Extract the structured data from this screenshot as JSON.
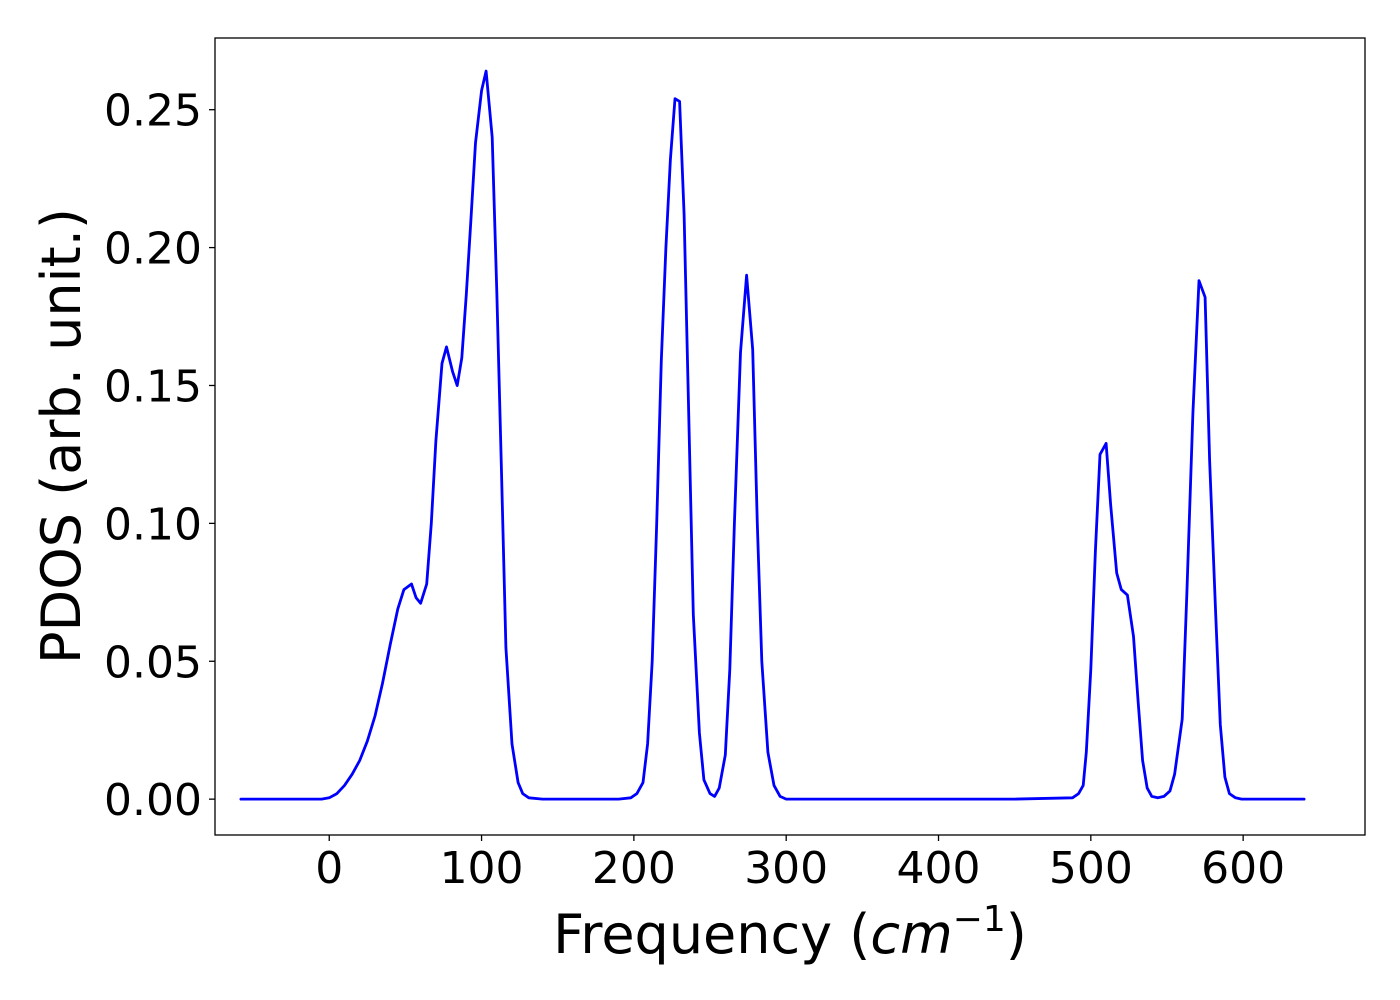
{
  "chart_data": {
    "type": "line",
    "xlabel": "Frequency (",
    "xlabel_math": "cm",
    "xlabel_sup": "−1",
    "xlabel_close": ")",
    "ylabel": "PDOS (arb. unit.)",
    "xlim": [
      -75,
      680
    ],
    "ylim": [
      -0.013,
      0.276
    ],
    "xticks": [
      0,
      100,
      200,
      300,
      400,
      500,
      600
    ],
    "xtick_labels": [
      "0",
      "100",
      "200",
      "300",
      "400",
      "500",
      "600"
    ],
    "yticks": [
      0.0,
      0.05,
      0.1,
      0.15,
      0.2,
      0.25
    ],
    "ytick_labels": [
      "0.00",
      "0.05",
      "0.10",
      "0.15",
      "0.20",
      "0.25"
    ],
    "grid": false,
    "series": [
      {
        "color": "#0000ff",
        "x": [
          -58,
          -20,
          -5,
          0,
          5,
          10,
          15,
          20,
          25,
          30,
          35,
          40,
          45,
          49,
          54,
          57,
          60,
          64,
          67,
          70,
          74,
          77,
          81,
          84,
          87,
          90,
          93,
          96,
          100,
          103,
          107,
          110,
          113,
          116,
          120,
          124,
          127,
          131,
          140,
          150,
          170,
          190,
          198,
          202,
          206,
          209,
          212,
          215,
          218,
          221,
          224,
          227,
          230,
          233,
          236,
          239,
          243,
          246,
          250,
          253,
          256,
          260,
          263,
          266,
          270,
          274,
          278,
          281,
          284,
          288,
          292,
          296,
          300,
          303,
          310,
          350,
          400,
          450,
          488,
          492,
          495,
          497,
          500,
          503,
          506,
          510,
          513,
          517,
          520,
          524,
          528,
          531,
          534,
          537,
          540,
          544,
          548,
          552,
          555,
          560,
          563,
          567,
          571,
          575,
          578,
          582,
          585,
          588,
          591,
          595,
          599,
          605,
          620,
          640
        ],
        "y": [
          0.0,
          0.0,
          0.0,
          0.0005,
          0.002,
          0.005,
          0.009,
          0.014,
          0.021,
          0.03,
          0.042,
          0.056,
          0.069,
          0.076,
          0.078,
          0.073,
          0.071,
          0.078,
          0.1,
          0.13,
          0.158,
          0.164,
          0.155,
          0.15,
          0.16,
          0.183,
          0.21,
          0.238,
          0.257,
          0.264,
          0.24,
          0.184,
          0.12,
          0.055,
          0.02,
          0.006,
          0.002,
          0.0005,
          0.0,
          0.0,
          0.0,
          0.0,
          0.0005,
          0.002,
          0.006,
          0.02,
          0.05,
          0.1,
          0.159,
          0.2,
          0.232,
          0.254,
          0.253,
          0.212,
          0.14,
          0.067,
          0.024,
          0.007,
          0.002,
          0.001,
          0.004,
          0.016,
          0.047,
          0.1,
          0.162,
          0.19,
          0.163,
          0.1,
          0.05,
          0.017,
          0.005,
          0.001,
          0.0,
          0.0,
          0.0,
          0.0,
          0.0,
          0.0,
          0.0005,
          0.002,
          0.005,
          0.017,
          0.047,
          0.09,
          0.125,
          0.129,
          0.107,
          0.082,
          0.076,
          0.074,
          0.059,
          0.036,
          0.014,
          0.004,
          0.001,
          0.0005,
          0.001,
          0.003,
          0.009,
          0.029,
          0.074,
          0.14,
          0.188,
          0.182,
          0.123,
          0.067,
          0.027,
          0.008,
          0.002,
          0.0005,
          0.0,
          0.0,
          0.0,
          0.0
        ]
      }
    ]
  }
}
